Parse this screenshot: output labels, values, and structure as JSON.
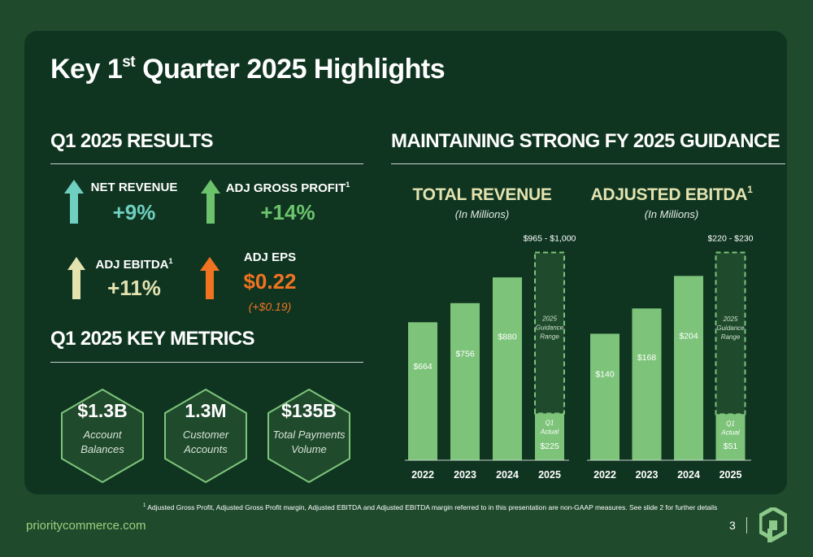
{
  "title": {
    "main": "Key 1",
    "sup": "st",
    "rest": " Quarter 2025 Highlights"
  },
  "sections": {
    "results": "Q1 2025 RESULTS",
    "metrics": "Q1 2025 KEY METRICS",
    "guidance": "MAINTAINING STRONG FY 2025 GUIDANCE"
  },
  "results": [
    {
      "label": "NET REVENUE",
      "sup": "",
      "value": "+9%",
      "sub": "",
      "color": "#6fcfc0",
      "direction": "up"
    },
    {
      "label": "ADJ GROSS PROFIT",
      "sup": "1",
      "value": "+14%",
      "sub": "",
      "color": "#6cc36c",
      "direction": "up"
    },
    {
      "label": "ADJ EBITDA",
      "sup": "1",
      "value": "+11%",
      "sub": "",
      "color": "#e4e3b0",
      "direction": "up"
    },
    {
      "label": "ADJ EPS",
      "sup": "",
      "value": "$0.22",
      "sub": "(+$0.19)",
      "color": "#f07322",
      "direction": "up"
    }
  ],
  "metrics": [
    {
      "value": "$1.3B",
      "line1": "Account",
      "line2": "Balances"
    },
    {
      "value": "1.3M",
      "line1": "Customer",
      "line2": "Accounts"
    },
    {
      "value": "$135B",
      "line1": "Total Payments",
      "line2": "Volume"
    }
  ],
  "chart_data": [
    {
      "type": "bar",
      "title": "TOTAL REVENUE",
      "title_sup": "",
      "subtitle": "(In Millions)",
      "categories": [
        "2022",
        "2023",
        "2024",
        "2025"
      ],
      "values": [
        664,
        756,
        880,
        225
      ],
      "value_labels": [
        "$664",
        "$756",
        "$880",
        "$225"
      ],
      "guidance": {
        "label": "$965 - $1,000",
        "low": 965,
        "high": 1000,
        "range_text": [
          "2025",
          "Guidance",
          "Range"
        ],
        "actual_text": [
          "Q1",
          "Actual"
        ]
      },
      "colors": {
        "bar": "#7dc47a",
        "guidance_fill": "#1f4a2c",
        "guidance_border": "#7dc47a"
      }
    },
    {
      "type": "bar",
      "title": "ADJUSTED EBITDA",
      "title_sup": "1",
      "subtitle": "(In Millions)",
      "categories": [
        "2022",
        "2023",
        "2024",
        "2025"
      ],
      "values": [
        140,
        168,
        204,
        51
      ],
      "value_labels": [
        "$140",
        "$168",
        "$204",
        "$51"
      ],
      "guidance": {
        "label": "$220 - $230",
        "low": 220,
        "high": 230,
        "range_text": [
          "2025",
          "Guidance",
          "Range"
        ],
        "actual_text": [
          "Q1",
          "Actual"
        ]
      },
      "colors": {
        "bar": "#7dc47a",
        "guidance_fill": "#1f4a2c",
        "guidance_border": "#7dc47a"
      }
    }
  ],
  "footnote": {
    "sup": "1",
    "text": " Adjusted Gross Profit, Adjusted Gross Profit margin, Adjusted EBITDA and Adjusted EBITDA margin referred to in this presentation are non-GAAP measures. See slide 2 for further details"
  },
  "footer": {
    "site": "prioritycommerce.com",
    "page": "3"
  },
  "colors": {
    "background": "#1f4a2c",
    "panel": "#0f3521",
    "accent_green": "#9ad27e"
  }
}
